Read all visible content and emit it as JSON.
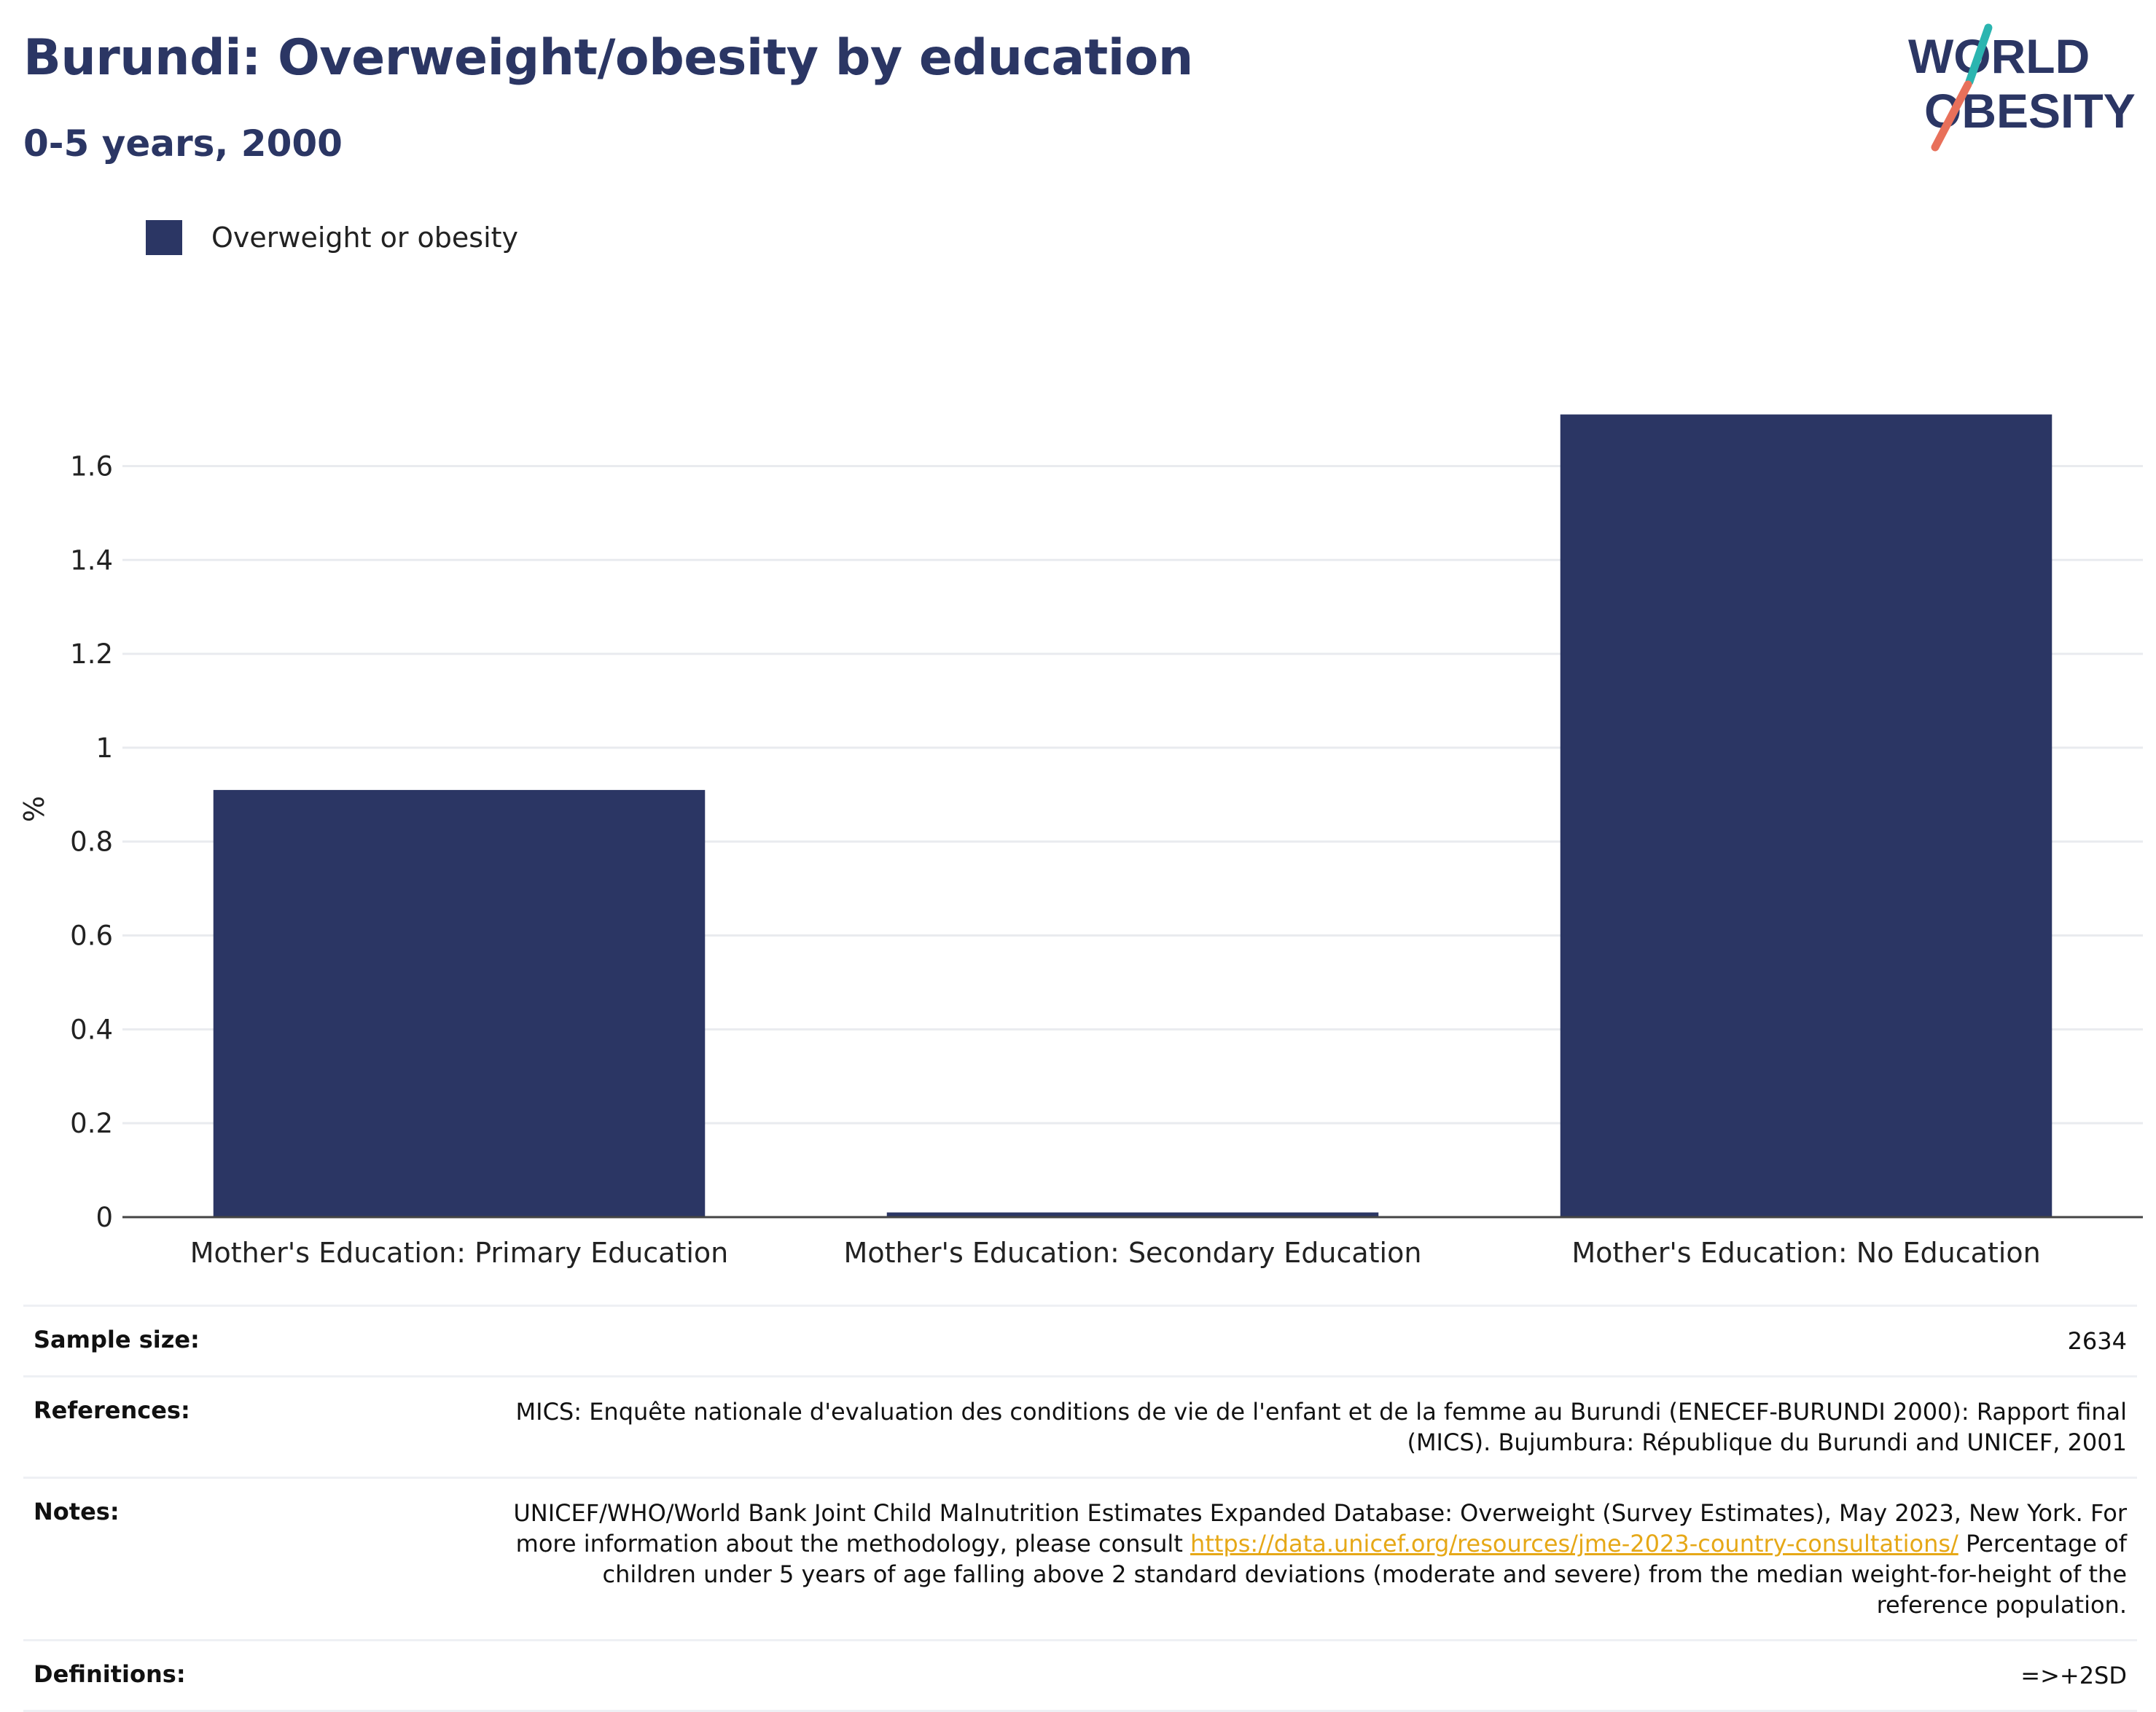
{
  "header": {
    "title": "Burundi: Overweight/obesity by education",
    "subtitle": "0-5 years, 2000"
  },
  "logo": {
    "line1": "WORLD",
    "line2": "OBESITY",
    "brand_color": "#2b3664",
    "accent_teal": "#2bb5b0",
    "accent_coral": "#e8705a"
  },
  "legend": {
    "items": [
      {
        "label": "Overweight or obesity",
        "color": "#2b3664"
      }
    ]
  },
  "chart_data": {
    "type": "bar",
    "categories": [
      "Mother's Education: Primary Education",
      "Mother's Education: Secondary Education",
      "Mother's Education: No Education"
    ],
    "series": [
      {
        "name": "Overweight or obesity",
        "values": [
          0.91,
          0.01,
          1.71
        ],
        "color": "#2b3664"
      }
    ],
    "title": "Burundi: Overweight/obesity by education",
    "subtitle": "0-5 years, 2000",
    "xlabel": "",
    "ylabel": "%",
    "ylim": [
      0,
      1.77
    ],
    "yticks": [
      0,
      0.2,
      0.4,
      0.6,
      0.8,
      1,
      1.2,
      1.4,
      1.6
    ],
    "ytick_labels": [
      "0",
      "0.2",
      "0.4",
      "0.6",
      "0.8",
      "1",
      "1.2",
      "1.4",
      "1.6"
    ],
    "grid": true,
    "legend_position": "top-left"
  },
  "metadata": {
    "sample_size_label": "Sample size:",
    "sample_size_value": "2634",
    "references_label": "References:",
    "references_value": "MICS: Enquête nationale d'evaluation des conditions de vie de l'enfant et de la femme au Burundi (ENECEF-BURUNDI 2000): Rapport final (MICS). Bujumbura: République du Burundi and UNICEF, 2001",
    "notes_label": "Notes:",
    "notes_text_before": "UNICEF/WHO/World Bank Joint Child Malnutrition Estimates Expanded Database: Overweight (Survey Estimates), May 2023, New York. For more information about the methodology, please consult ",
    "notes_link": "https://data.unicef.org/resources/jme-2023-country-consultations/",
    "notes_text_after": " Percentage of children under 5 years of age falling above 2 standard deviations (moderate and severe) from the median weight-for-height of the reference population.",
    "definitions_label": "Definitions:",
    "definitions_value": "=>+2SD"
  }
}
